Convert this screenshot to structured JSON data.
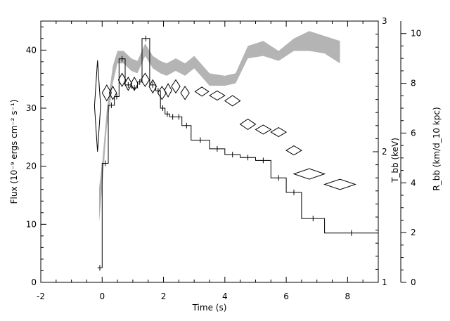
{
  "chart_data": {
    "type": "line",
    "xlabel": "Time (s)",
    "ylabel_left": "Flux (10⁻⁹ ergs cm⁻² s⁻¹)",
    "ylabel_right_inner": "T_bb (keV)",
    "ylabel_right_outer": "R_bb (km/d_10 kpc)",
    "xlim": [
      -2,
      9
    ],
    "ylim_left": [
      0,
      45
    ],
    "ylim_right_inner": [
      1,
      3
    ],
    "ylim_right_outer": [
      0,
      10.5
    ],
    "x_ticks": [
      "-2",
      "0",
      "2",
      "4",
      "6",
      "8"
    ],
    "y_left_ticks": [
      "0",
      "10",
      "20",
      "30",
      "40"
    ],
    "y_right_inner_ticks": [
      "1",
      "2",
      "3"
    ],
    "y_right_outer_ticks": [
      "0",
      "2",
      "4",
      "6",
      "8",
      "10"
    ],
    "flux_histogram": {
      "axis": "left",
      "steps": [
        {
          "x0": -0.15,
          "x1": 0.0,
          "y": 2.5
        },
        {
          "x0": 0.0,
          "x1": 0.2,
          "y": 20.5
        },
        {
          "x0": 0.2,
          "x1": 0.4,
          "y": 30.5
        },
        {
          "x0": 0.4,
          "x1": 0.55,
          "y": 32.0
        },
        {
          "x0": 0.55,
          "x1": 0.75,
          "y": 38.5
        },
        {
          "x0": 0.75,
          "x1": 0.95,
          "y": 34.0
        },
        {
          "x0": 0.95,
          "x1": 1.15,
          "y": 33.5
        },
        {
          "x0": 1.15,
          "x1": 1.3,
          "y": 34.5
        },
        {
          "x0": 1.3,
          "x1": 1.55,
          "y": 42.0
        },
        {
          "x0": 1.55,
          "x1": 1.75,
          "y": 34.0
        },
        {
          "x0": 1.75,
          "x1": 1.9,
          "y": 33.0
        },
        {
          "x0": 1.9,
          "x1": 2.05,
          "y": 30.0
        },
        {
          "x0": 2.05,
          "x1": 2.2,
          "y": 29.0
        },
        {
          "x0": 2.2,
          "x1": 2.4,
          "y": 28.5
        },
        {
          "x0": 2.4,
          "x1": 2.6,
          "y": 28.5
        },
        {
          "x0": 2.6,
          "x1": 2.9,
          "y": 27.0
        },
        {
          "x0": 2.9,
          "x1": 3.5,
          "y": 24.5
        },
        {
          "x0": 3.5,
          "x1": 4.0,
          "y": 23.0
        },
        {
          "x0": 4.0,
          "x1": 4.5,
          "y": 22.0
        },
        {
          "x0": 4.5,
          "x1": 5.0,
          "y": 21.5
        },
        {
          "x0": 5.0,
          "x1": 5.5,
          "y": 21.0
        },
        {
          "x0": 5.5,
          "x1": 6.0,
          "y": 18.0
        },
        {
          "x0": 6.0,
          "x1": 6.5,
          "y": 15.5
        },
        {
          "x0": 6.5,
          "x1": 7.25,
          "y": 11.0
        },
        {
          "x0": 7.25,
          "x1": 9.0,
          "y": 8.5
        }
      ]
    },
    "temperature_points": {
      "axis": "right_inner",
      "points": [
        {
          "x": -0.15,
          "y": 2.35,
          "dx": 0.1,
          "dy": 0.35
        },
        {
          "x": 0.15,
          "y": 2.45,
          "dx": 0.15,
          "dy": 0.06
        },
        {
          "x": 0.35,
          "y": 2.45,
          "dx": 0.12,
          "dy": 0.05
        },
        {
          "x": 0.65,
          "y": 2.55,
          "dx": 0.12,
          "dy": 0.05
        },
        {
          "x": 0.85,
          "y": 2.52,
          "dx": 0.12,
          "dy": 0.05
        },
        {
          "x": 1.05,
          "y": 2.52,
          "dx": 0.12,
          "dy": 0.05
        },
        {
          "x": 1.4,
          "y": 2.55,
          "dx": 0.14,
          "dy": 0.05
        },
        {
          "x": 1.65,
          "y": 2.5,
          "dx": 0.12,
          "dy": 0.05
        },
        {
          "x": 1.95,
          "y": 2.45,
          "dx": 0.14,
          "dy": 0.05
        },
        {
          "x": 2.15,
          "y": 2.47,
          "dx": 0.12,
          "dy": 0.05
        },
        {
          "x": 2.4,
          "y": 2.5,
          "dx": 0.14,
          "dy": 0.05
        },
        {
          "x": 2.7,
          "y": 2.45,
          "dx": 0.14,
          "dy": 0.05
        },
        {
          "x": 3.25,
          "y": 2.46,
          "dx": 0.22,
          "dy": 0.035
        },
        {
          "x": 3.75,
          "y": 2.43,
          "dx": 0.25,
          "dy": 0.035
        },
        {
          "x": 4.25,
          "y": 2.39,
          "dx": 0.25,
          "dy": 0.04
        },
        {
          "x": 4.75,
          "y": 2.21,
          "dx": 0.25,
          "dy": 0.04
        },
        {
          "x": 5.25,
          "y": 2.17,
          "dx": 0.25,
          "dy": 0.035
        },
        {
          "x": 5.75,
          "y": 2.15,
          "dx": 0.25,
          "dy": 0.035
        },
        {
          "x": 6.25,
          "y": 2.01,
          "dx": 0.25,
          "dy": 0.035
        },
        {
          "x": 6.75,
          "y": 1.83,
          "dx": 0.5,
          "dy": 0.04
        },
        {
          "x": 7.75,
          "y": 1.75,
          "dx": 0.5,
          "dy": 0.04
        }
      ]
    },
    "radius_band": {
      "axis": "right_outer",
      "points": [
        {
          "x": -0.1,
          "lo": 2.4,
          "hi": 3.8
        },
        {
          "x": 0.0,
          "lo": 3.8,
          "hi": 4.8
        },
        {
          "x": 0.15,
          "lo": 6.2,
          "hi": 6.9
        },
        {
          "x": 0.35,
          "lo": 8.0,
          "hi": 8.7
        },
        {
          "x": 0.5,
          "lo": 8.8,
          "hi": 9.3
        },
        {
          "x": 0.7,
          "lo": 8.8,
          "hi": 9.3
        },
        {
          "x": 0.95,
          "lo": 8.5,
          "hi": 9.0
        },
        {
          "x": 1.15,
          "lo": 8.4,
          "hi": 8.9
        },
        {
          "x": 1.4,
          "lo": 9.1,
          "hi": 9.6
        },
        {
          "x": 1.65,
          "lo": 8.6,
          "hi": 9.1
        },
        {
          "x": 1.9,
          "lo": 8.4,
          "hi": 8.9
        },
        {
          "x": 2.1,
          "lo": 8.3,
          "hi": 8.8
        },
        {
          "x": 2.4,
          "lo": 8.5,
          "hi": 9.0
        },
        {
          "x": 2.7,
          "lo": 8.3,
          "hi": 8.8
        },
        {
          "x": 3.0,
          "lo": 8.6,
          "hi": 9.1
        },
        {
          "x": 3.5,
          "lo": 7.9,
          "hi": 8.4
        },
        {
          "x": 4.0,
          "lo": 7.9,
          "hi": 8.3
        },
        {
          "x": 4.35,
          "lo": 8.0,
          "hi": 8.4
        },
        {
          "x": 4.75,
          "lo": 9.0,
          "hi": 9.5
        },
        {
          "x": 5.25,
          "lo": 9.1,
          "hi": 9.7
        },
        {
          "x": 5.75,
          "lo": 8.9,
          "hi": 9.3
        },
        {
          "x": 6.25,
          "lo": 9.3,
          "hi": 9.8
        },
        {
          "x": 6.75,
          "lo": 9.3,
          "hi": 10.1
        },
        {
          "x": 7.25,
          "lo": 9.2,
          "hi": 9.9
        },
        {
          "x": 7.75,
          "lo": 8.8,
          "hi": 9.7
        }
      ]
    },
    "colors": {
      "axes": "#000000",
      "flux_line": "#000000",
      "radius_band": "#b4b4b4",
      "diamond_edge": "#000000",
      "background": "#ffffff"
    }
  }
}
